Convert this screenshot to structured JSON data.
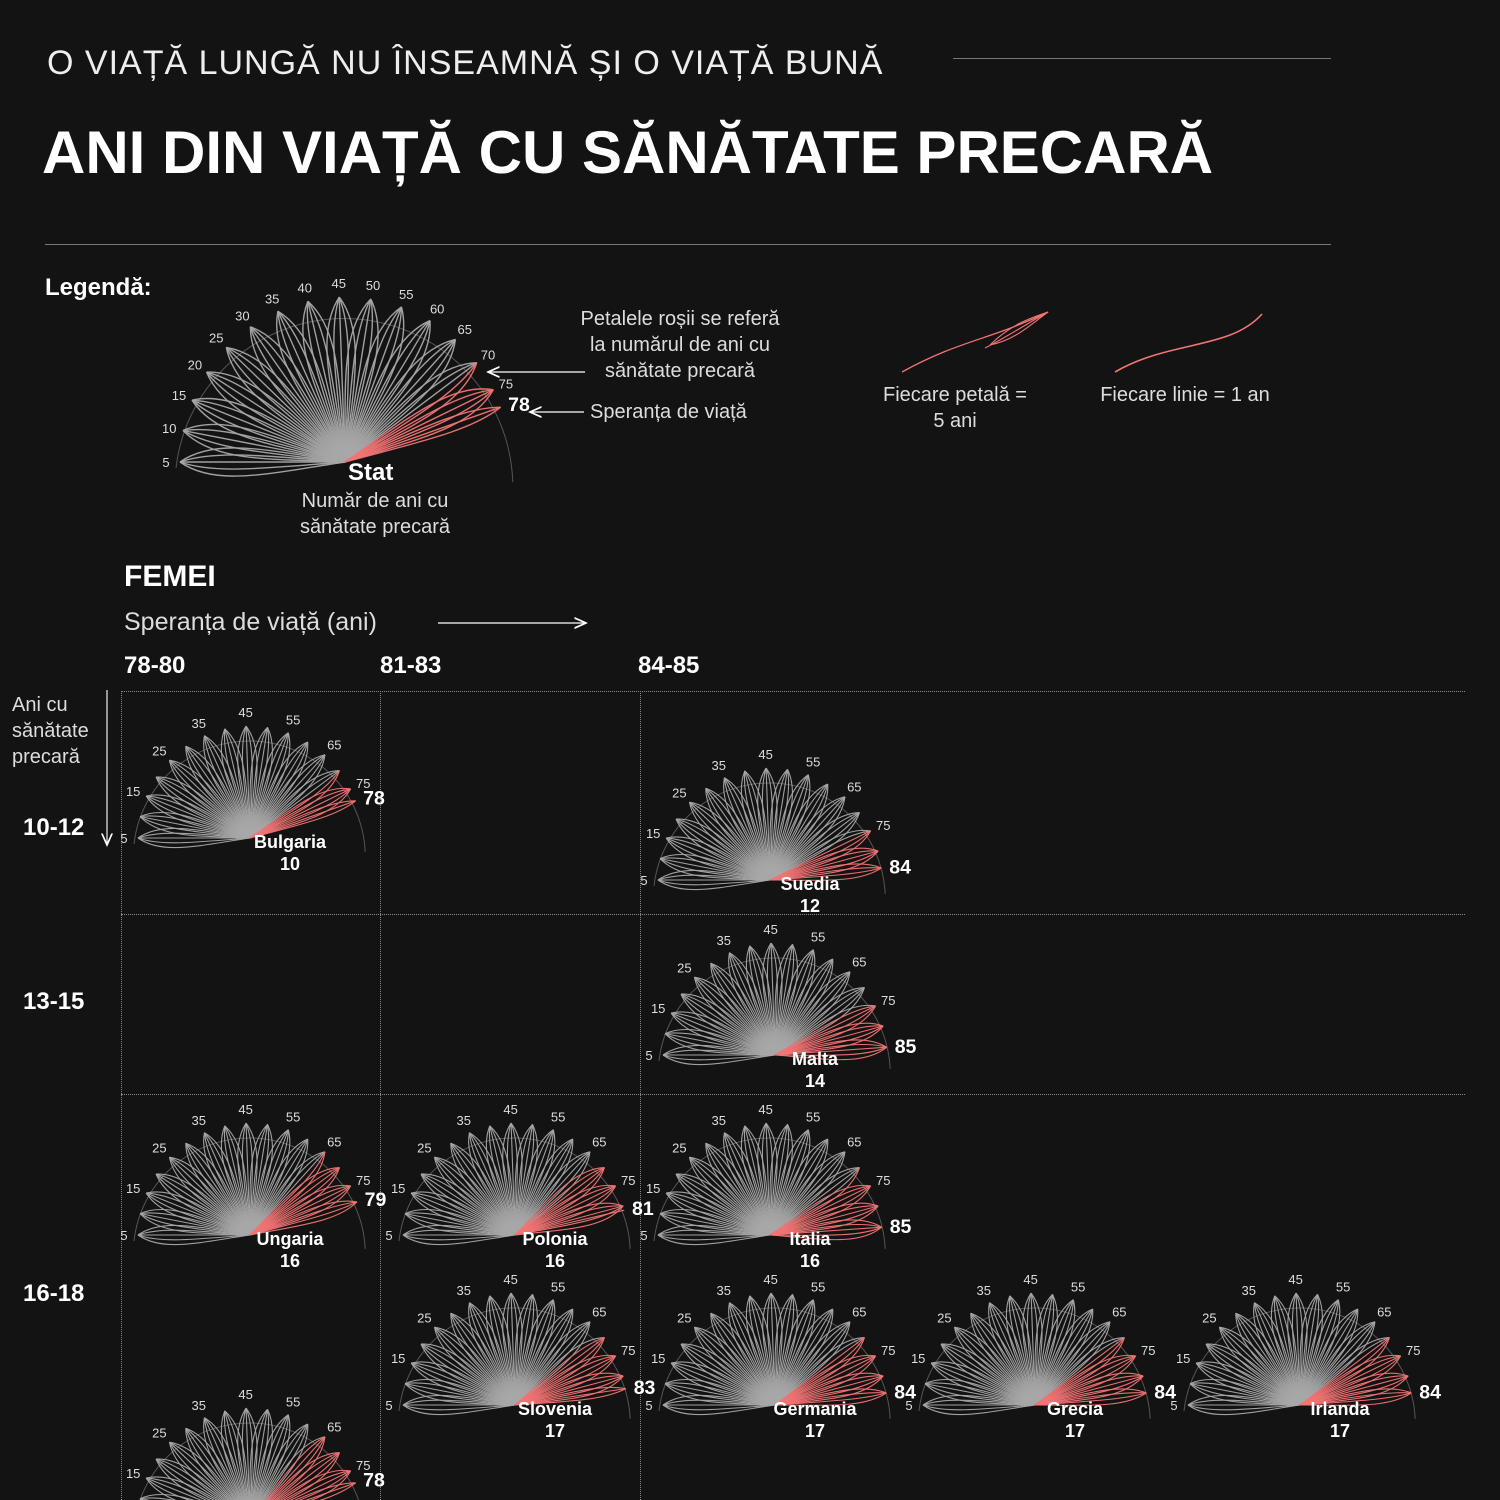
{
  "header": {
    "subtitle": "O VIAȚĂ LUNGĂ NU ÎNSEAMNĂ ȘI O VIAȚĂ BUNĂ",
    "title": "ANI DIN VIAȚĂ CU SĂNĂTATE PRECARĂ"
  },
  "legend": {
    "heading": "Legendă:",
    "example": {
      "name": "Stat",
      "life_expectancy": 78,
      "poor_health_years": 10
    },
    "stat_desc_1": "Număr de ani cu",
    "stat_desc_2": "sănătate precară",
    "red_note_1": "Petalele roșii se referă",
    "red_note_2": "la numărul de ani cu",
    "red_note_3": "sănătate precară",
    "le_note": "Speranța de viață",
    "petal_note_1": "Fiecare petală =",
    "petal_note_2": "5 ani",
    "line_note": "Fiecare linie = 1 an"
  },
  "section": {
    "title": "FEMEI",
    "x_axis": "Speranța de viață (ani)",
    "y_axis_1": "Ani cu",
    "y_axis_2": "sănătate",
    "y_axis_3": "precară"
  },
  "columns": [
    "78-80",
    "81-83",
    "84-85"
  ],
  "rows": [
    "10-12",
    "13-15",
    "16-18"
  ],
  "colors": {
    "background": "#131313",
    "healthy": "#a8a8a8",
    "poor_health": "#f27474",
    "text": "#ffffff"
  },
  "chart_data": {
    "type": "radial-petal",
    "title": "Ani din viață cu sănătate precară — Femei",
    "xlabel": "Speranța de viață (ani)",
    "ylabel": "Ani cu sănătate precară",
    "tick_labels": [
      5,
      15,
      25,
      35,
      45,
      55,
      65,
      75
    ],
    "countries": [
      {
        "name": "Bulgaria",
        "life_expectancy": 78,
        "poor_health_years": 10,
        "col": 0,
        "row": 0
      },
      {
        "name": "Suedia",
        "life_expectancy": 84,
        "poor_health_years": 12,
        "col": 2,
        "row": 0
      },
      {
        "name": "Malta",
        "life_expectancy": 85,
        "poor_health_years": 14,
        "col": 2,
        "row": 1
      },
      {
        "name": "Ungaria",
        "life_expectancy": 79,
        "poor_health_years": 16,
        "col": 0,
        "row": 2
      },
      {
        "name": "Polonia",
        "life_expectancy": 81,
        "poor_health_years": 16,
        "col": 1,
        "row": 2
      },
      {
        "name": "Italia",
        "life_expectancy": 85,
        "poor_health_years": 16,
        "col": 2,
        "row": 2
      },
      {
        "name": "Slovenia",
        "life_expectancy": 83,
        "poor_health_years": 17,
        "col": 1,
        "row": 2
      },
      {
        "name": "Germania",
        "life_expectancy": 84,
        "poor_health_years": 17,
        "col": 2,
        "row": 2
      },
      {
        "name": "Grecia",
        "life_expectancy": 84,
        "poor_health_years": 17,
        "col": 2,
        "row": 2
      },
      {
        "name": "Irlanda",
        "life_expectancy": 84,
        "poor_health_years": 17,
        "col": 2,
        "row": 2
      },
      {
        "name": null,
        "life_expectancy": 78,
        "poor_health_years": 17,
        "col": 0,
        "row": 2
      }
    ]
  }
}
